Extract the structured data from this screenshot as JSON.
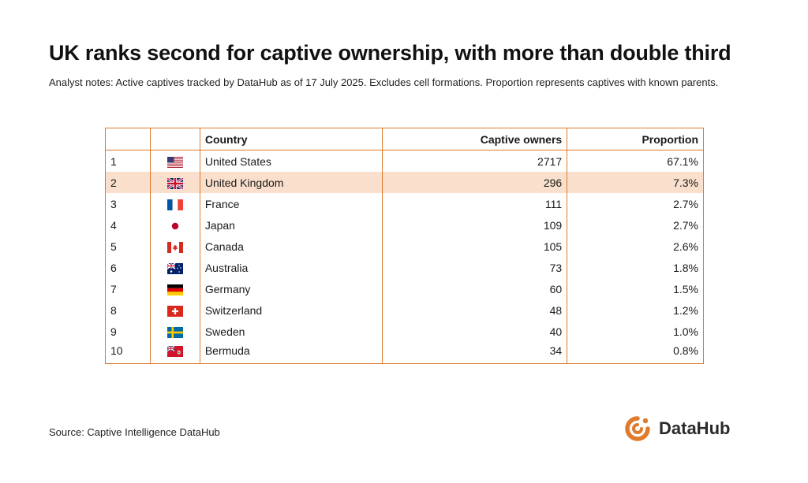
{
  "header": {
    "title": "UK ranks second for captive ownership, with more than double third",
    "subtitle": "Analyst notes: Active captives tracked by DataHub as of 17 July 2025. Excludes cell formations. Proportion represents captives with known parents."
  },
  "chart_data": {
    "type": "table",
    "columns": [
      "",
      "",
      "Country",
      "Captive owners",
      "Proportion"
    ],
    "rows": [
      {
        "rank": "1",
        "flag": "us-flag-icon",
        "country": "United States",
        "owners": "2717",
        "proportion": "67.1%"
      },
      {
        "rank": "2",
        "flag": "uk-flag-icon",
        "country": "United Kingdom",
        "owners": "296",
        "proportion": "7.3%"
      },
      {
        "rank": "3",
        "flag": "france-flag-icon",
        "country": "France",
        "owners": "111",
        "proportion": "2.7%"
      },
      {
        "rank": "4",
        "flag": "japan-flag-icon",
        "country": "Japan",
        "owners": "109",
        "proportion": "2.7%"
      },
      {
        "rank": "5",
        "flag": "canada-flag-icon",
        "country": "Canada",
        "owners": "105",
        "proportion": "2.6%"
      },
      {
        "rank": "6",
        "flag": "australia-flag-icon",
        "country": "Australia",
        "owners": "73",
        "proportion": "1.8%"
      },
      {
        "rank": "7",
        "flag": "germany-flag-icon",
        "country": "Germany",
        "owners": "60",
        "proportion": "1.5%"
      },
      {
        "rank": "8",
        "flag": "switzerland-flag-icon",
        "country": "Switzerland",
        "owners": "48",
        "proportion": "1.2%"
      },
      {
        "rank": "9",
        "flag": "sweden-flag-icon",
        "country": "Sweden",
        "owners": "40",
        "proportion": "1.0%"
      },
      {
        "rank": "10",
        "flag": "bermuda-flag-icon",
        "country": "Bermuda",
        "owners": "34",
        "proportion": "0.8%"
      }
    ],
    "highlight_row": "United Kingdom"
  },
  "colors": {
    "accent": "#e07a2c",
    "highlight_row": "#f9dfcc"
  },
  "footer": {
    "source": "Source: Captive Intelligence DataHub",
    "logo_text": "DataHub",
    "logo_icon": "datahub-logo-icon"
  }
}
